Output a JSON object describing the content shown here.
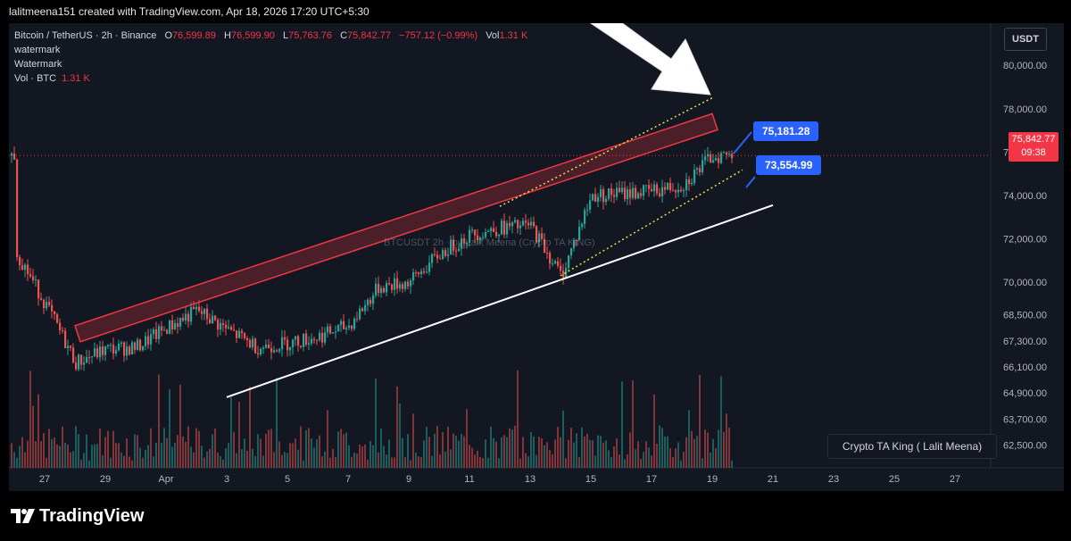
{
  "header": {
    "credit": "lalitmeena151 created with TradingView.com, Apr 18, 2026 17:20 UTC+5:30"
  },
  "legend": {
    "symbol": "Bitcoin / TetherUS · 2h · Binance",
    "o_label": "O",
    "o_value": "76,599.89",
    "h_label": "H",
    "h_value": "76,599.90",
    "l_label": "L",
    "l_value": "75,763.76",
    "c_label": "C",
    "c_value": "75,842.77",
    "change": "−757.12 (−0.99%)",
    "vol_label": "Vol",
    "vol_value": "1.31 K",
    "line2": "watermark",
    "line3": "Watermark",
    "volume_label": "Vol · BTC",
    "volume_value": "1.31 K"
  },
  "currency_button": "USDT",
  "last_price": {
    "price": "75,842.77",
    "countdown": "09:38"
  },
  "callouts": {
    "upper": "75,181.28",
    "lower": "73,554.99"
  },
  "watermark_text": "BTCUSDT 2h · by Lalit Meena (Crypto TA KING)",
  "author_box": "Crypto TA King ( Lalit Meena)",
  "footer": {
    "brand": "TradingView"
  },
  "colors": {
    "up": "#26a69a",
    "down": "#ef5350",
    "band": "#f23645",
    "support": "#ffffff",
    "dotted": "#e6e04a",
    "callout": "#2962ff"
  },
  "chart_data": {
    "type": "candlestick",
    "title": "Bitcoin / TetherUS · 2h · Binance",
    "y_axis_ticks": [
      "80,000.00",
      "78,000.00",
      "76,000.00",
      "74,000.00",
      "72,000.00",
      "70,000.00",
      "68,500.00",
      "67,300.00",
      "66,100.00",
      "64,900.00",
      "63,700.00",
      "62,500.00"
    ],
    "x_axis_ticks": [
      "27",
      "29",
      "Apr",
      "3",
      "5",
      "7",
      "9",
      "11",
      "13",
      "15",
      "17",
      "19",
      "21",
      "23",
      "25",
      "27"
    ],
    "close_series_key_points": [
      {
        "x": "Mar 26",
        "close": 71500
      },
      {
        "x": "Mar 27",
        "close": 69000
      },
      {
        "x": "Mar 28",
        "close": 66300
      },
      {
        "x": "Mar 29",
        "close": 66900
      },
      {
        "x": "Mar 30",
        "close": 67000
      },
      {
        "x": "Mar 31",
        "close": 67900
      },
      {
        "x": "Apr 1",
        "close": 68700
      },
      {
        "x": "Apr 2",
        "close": 67800
      },
      {
        "x": "Apr 3",
        "close": 67000
      },
      {
        "x": "Apr 4",
        "close": 67200
      },
      {
        "x": "Apr 5",
        "close": 67500
      },
      {
        "x": "Apr 6",
        "close": 68000
      },
      {
        "x": "Apr 7",
        "close": 69800
      },
      {
        "x": "Apr 8",
        "close": 70000
      },
      {
        "x": "Apr 9",
        "close": 71300
      },
      {
        "x": "Apr 10",
        "close": 72200
      },
      {
        "x": "Apr 11",
        "close": 72500
      },
      {
        "x": "Apr 12",
        "close": 72600
      },
      {
        "x": "Apr 13",
        "close": 70300
      },
      {
        "x": "Apr 14",
        "close": 74000
      },
      {
        "x": "Apr 15",
        "close": 74100
      },
      {
        "x": "Apr 16",
        "close": 74200
      },
      {
        "x": "Apr 17",
        "close": 74500
      },
      {
        "x": "Apr 18",
        "close": 75842.77
      }
    ],
    "annotations": [
      {
        "type": "resistance-channel",
        "from": {
          "x": "Mar 28",
          "price": 68000
        },
        "to": {
          "x": "Apr 18",
          "price": 77400
        }
      },
      {
        "type": "support-line",
        "from": {
          "x": "Apr 2",
          "price": 64700
        },
        "to": {
          "x": "Apr 20",
          "price": 73554.99
        }
      },
      {
        "type": "dotted-channel-top",
        "from": {
          "x": "Apr 11",
          "price": 73500
        },
        "to": {
          "x": "Apr 18",
          "price": 78500
        }
      },
      {
        "type": "dotted-channel-bottom",
        "from": {
          "x": "Apr 13",
          "price": 70300
        },
        "to": {
          "x": "Apr 19",
          "price": 75181.28
        }
      }
    ],
    "last_price": 75842.77,
    "volume_last": "1.31 K"
  }
}
